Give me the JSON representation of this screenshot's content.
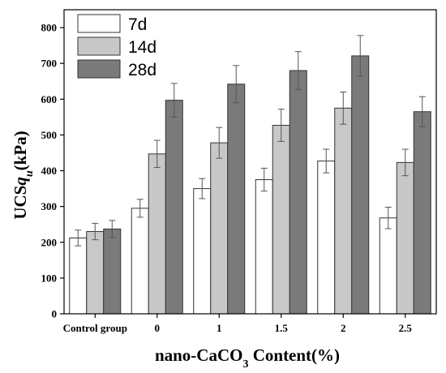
{
  "chart_data": {
    "type": "bar",
    "xlabel": "nano-CaCO",
    "xlabel_sub": "3",
    "xlabel_suffix": " Content(%)",
    "ylabel": "UCS",
    "ylabel_var": "q",
    "ylabel_sub": "u",
    "ylabel_unit": "(kPa)",
    "categories": [
      "Control group",
      "0",
      "1",
      "1.5",
      "2",
      "2.5"
    ],
    "ylim": [
      0,
      850
    ],
    "yticks": [
      0,
      100,
      200,
      300,
      400,
      500,
      600,
      700,
      800
    ],
    "legend_position": "top-left",
    "series": [
      {
        "name": "7d",
        "color": "#ffffff",
        "values": [
          212,
          295,
          350,
          375,
          427,
          268
        ],
        "errors": [
          22,
          25,
          28,
          32,
          33,
          30
        ]
      },
      {
        "name": "14d",
        "color": "#c8c8c8",
        "values": [
          230,
          447,
          478,
          527,
          575,
          423
        ],
        "errors": [
          23,
          38,
          43,
          45,
          45,
          37
        ]
      },
      {
        "name": "28d",
        "color": "#7a7a7a",
        "values": [
          237,
          597,
          642,
          680,
          721,
          565
        ],
        "errors": [
          24,
          47,
          52,
          53,
          57,
          42
        ]
      }
    ]
  }
}
